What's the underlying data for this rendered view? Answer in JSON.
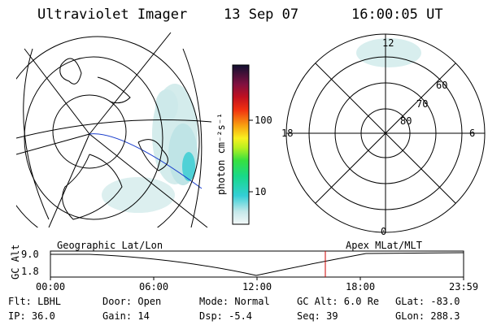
{
  "header": {
    "title": "Ultraviolet Imager",
    "date": "13 Sep 07",
    "time": "16:00:05 UT"
  },
  "colorbar": {
    "unit_label": "photon cm⁻²s⁻¹",
    "ticks": [
      "100",
      "10"
    ]
  },
  "polar_plot": {
    "lat_labels": [
      "60",
      "70",
      "80"
    ],
    "mlt_labels": [
      "12",
      "18",
      "6",
      "0"
    ]
  },
  "timeline": {
    "left_label": "Geographic Lat/Lon",
    "right_label": "Apex MLat/MLT",
    "y_axis_label": "GC Alt",
    "y_ticks": [
      "9.0",
      "1.8"
    ],
    "x_ticks": [
      "00:00",
      "06:00",
      "12:00",
      "18:00",
      "23:59"
    ],
    "marker_color": "#cc0000"
  },
  "info": {
    "filter": "Flt: LBHL",
    "door": "Door: Open",
    "mode": "Mode: Normal",
    "gc_alt": "GC Alt: 6.0 Re",
    "glat": "GLat: -83.0",
    "ip": "IP: 36.0",
    "gain": "Gain: 14",
    "dsp": "Dsp:   -5.4",
    "seq": "Seq: 39",
    "glon": "GLon: 288.3"
  }
}
